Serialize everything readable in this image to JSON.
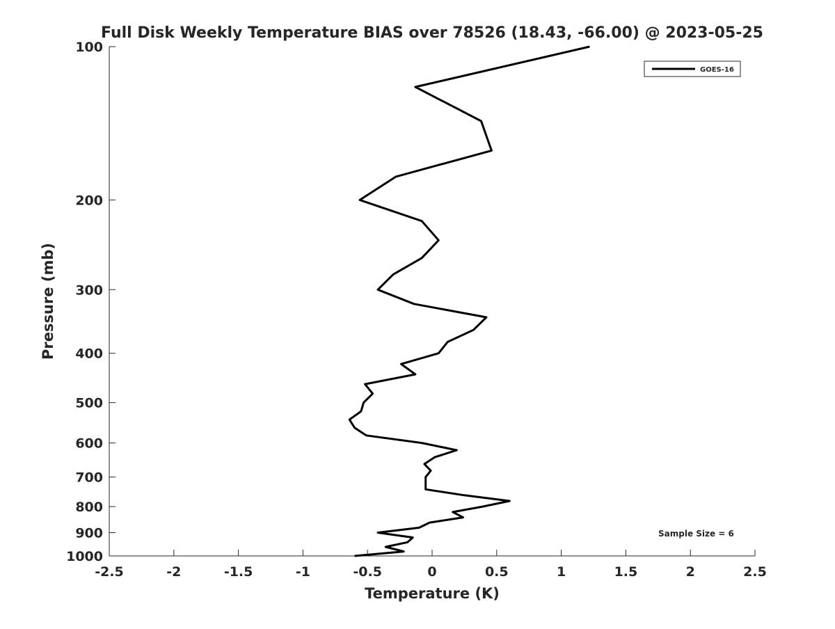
{
  "chart_data": {
    "type": "line",
    "title": "Full Disk Weekly Temperature BIAS over 78526 (18.43, -66.00) @ 2023-05-25",
    "xlabel": "Temperature (K)",
    "ylabel": "Pressure (mb)",
    "xlim": [
      -2.5,
      2.5
    ],
    "ylim": [
      100,
      1000
    ],
    "yscale": "log",
    "yreversed": true,
    "xticks": [
      "-2.5",
      "-2",
      "-1.5",
      "-1",
      "-0.5",
      "0",
      "0.5",
      "1",
      "1.5",
      "2",
      "2.5"
    ],
    "yticks": [
      "100",
      "200",
      "300",
      "400",
      "500",
      "600",
      "700",
      "800",
      "900",
      "1000"
    ],
    "legend": {
      "entries": [
        "GOES-16"
      ],
      "placement": "top-right"
    },
    "annotation": "Sample Size = 6",
    "series": [
      {
        "name": "GOES-16",
        "color": "#000000",
        "pressure": [
          100,
          120,
          140,
          160,
          180,
          200,
          220,
          240,
          260,
          280,
          300,
          320,
          340,
          360,
          380,
          400,
          420,
          440,
          460,
          480,
          500,
          520,
          540,
          560,
          580,
          600,
          620,
          640,
          660,
          680,
          700,
          740,
          760,
          780,
          800,
          820,
          840,
          860,
          880,
          900,
          920,
          940,
          960,
          980,
          1000
        ],
        "temperature": [
          1.22,
          -0.13,
          0.38,
          0.46,
          -0.28,
          -0.56,
          -0.08,
          0.05,
          -0.08,
          -0.3,
          -0.42,
          -0.14,
          0.42,
          0.32,
          0.12,
          0.05,
          -0.24,
          -0.13,
          -0.52,
          -0.46,
          -0.53,
          -0.55,
          -0.64,
          -0.6,
          -0.51,
          -0.08,
          0.19,
          0.02,
          -0.06,
          -0.01,
          -0.05,
          -0.05,
          0.25,
          0.6,
          0.39,
          0.16,
          0.24,
          -0.02,
          -0.1,
          -0.42,
          -0.15,
          -0.19,
          -0.36,
          -0.22,
          -0.6
        ]
      }
    ]
  }
}
